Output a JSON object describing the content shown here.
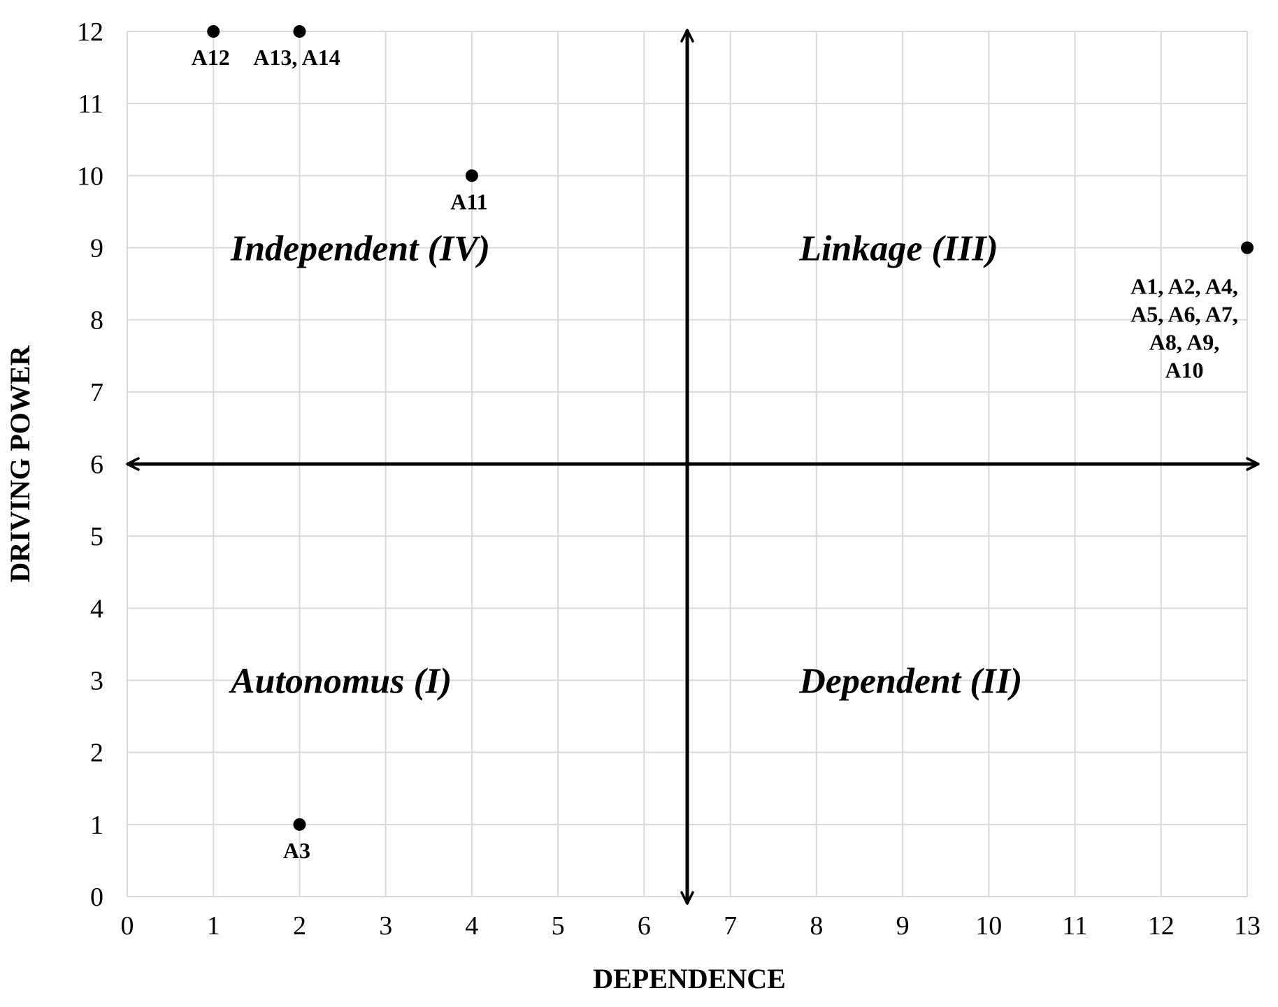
{
  "chart_data": {
    "type": "scatter",
    "title": "",
    "xlabel": "DEPENDENCE",
    "ylabel": "DRIVING POWER",
    "xlim": [
      0,
      13
    ],
    "ylim": [
      0,
      12
    ],
    "x_ticks": [
      0,
      1,
      2,
      3,
      4,
      5,
      6,
      7,
      8,
      9,
      10,
      11,
      12,
      13
    ],
    "y_ticks": [
      0,
      1,
      2,
      3,
      4,
      5,
      6,
      7,
      8,
      9,
      10,
      11,
      12
    ],
    "grid": true,
    "legend": "none",
    "divider": {
      "x": 6.5,
      "y": 6
    },
    "points": [
      {
        "x": 1,
        "y": 12,
        "label": [
          "A12"
        ]
      },
      {
        "x": 2,
        "y": 12,
        "label": [
          "A13, A14"
        ]
      },
      {
        "x": 4,
        "y": 10,
        "label": [
          "A11"
        ]
      },
      {
        "x": 13,
        "y": 9,
        "label": [
          "A1, A2, A4,",
          "A5, A6, A7,",
          "A8, A9,",
          "A10"
        ]
      },
      {
        "x": 2,
        "y": 1,
        "label": [
          "A3"
        ]
      }
    ],
    "quadrants": [
      {
        "id": "IV",
        "text": "Independent (IV)",
        "x": 1.2,
        "y": 9
      },
      {
        "id": "III",
        "text": "Linkage (III)",
        "x": 7.8,
        "y": 9
      },
      {
        "id": "I",
        "text": "Autonomus (I)",
        "x": 1.2,
        "y": 3
      },
      {
        "id": "II",
        "text": "Dependent (II)",
        "x": 7.8,
        "y": 3
      }
    ]
  },
  "colors": {
    "grid": "#d9d9d9",
    "axis": "#000000",
    "point": "#000000",
    "text": "#000000"
  }
}
